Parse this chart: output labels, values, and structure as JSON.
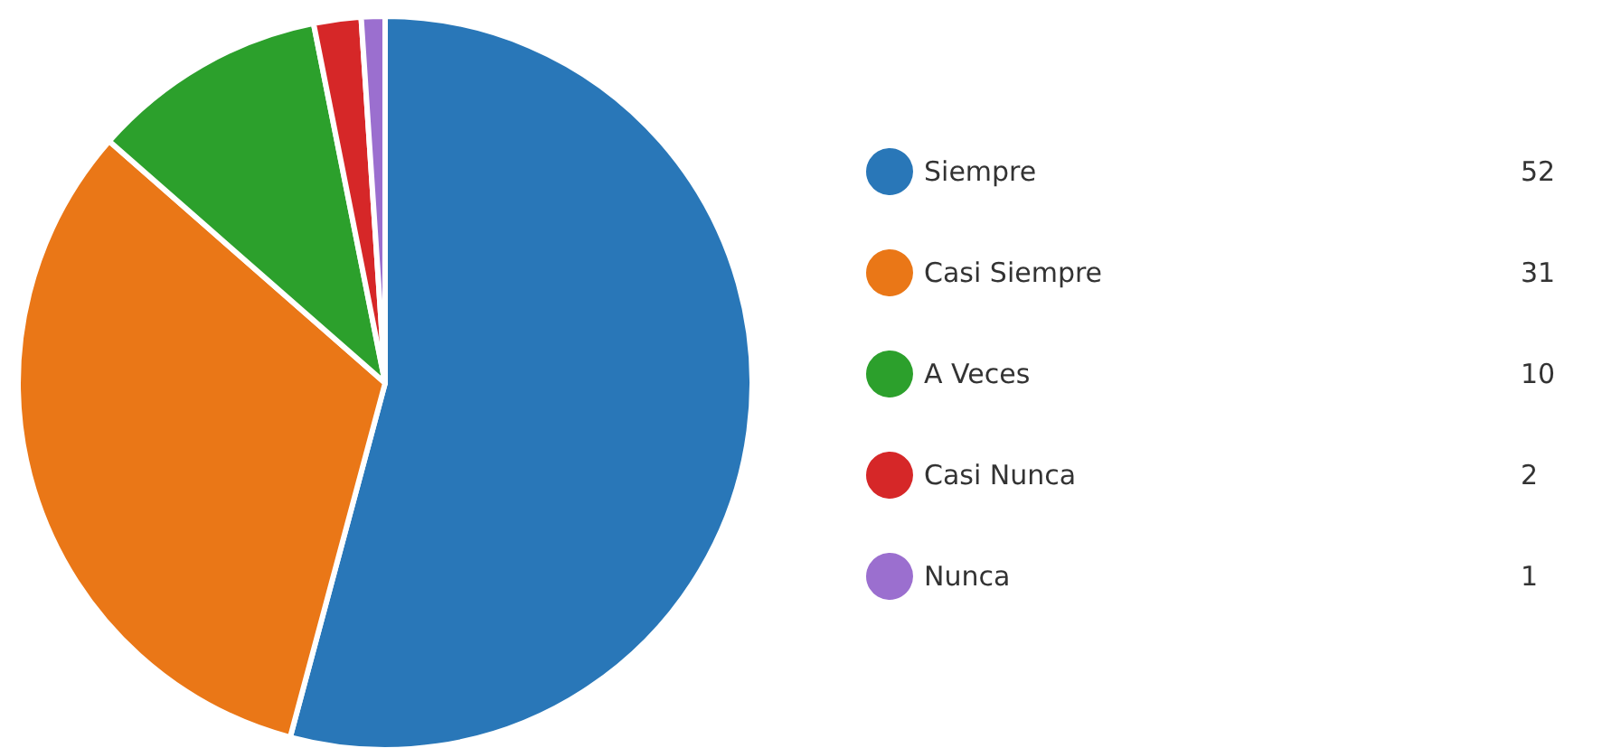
{
  "chart_data": {
    "type": "pie",
    "categories": [
      "Siempre",
      "Casi Siempre",
      "A Veces",
      "Casi Nunca",
      "Nunca"
    ],
    "values": [
      52,
      31,
      10,
      2,
      1
    ],
    "colors": [
      "#2977b8",
      "#ea7717",
      "#2ca02c",
      "#d62728",
      "#9b6fcf"
    ],
    "legend": "right",
    "data_labels": true
  }
}
